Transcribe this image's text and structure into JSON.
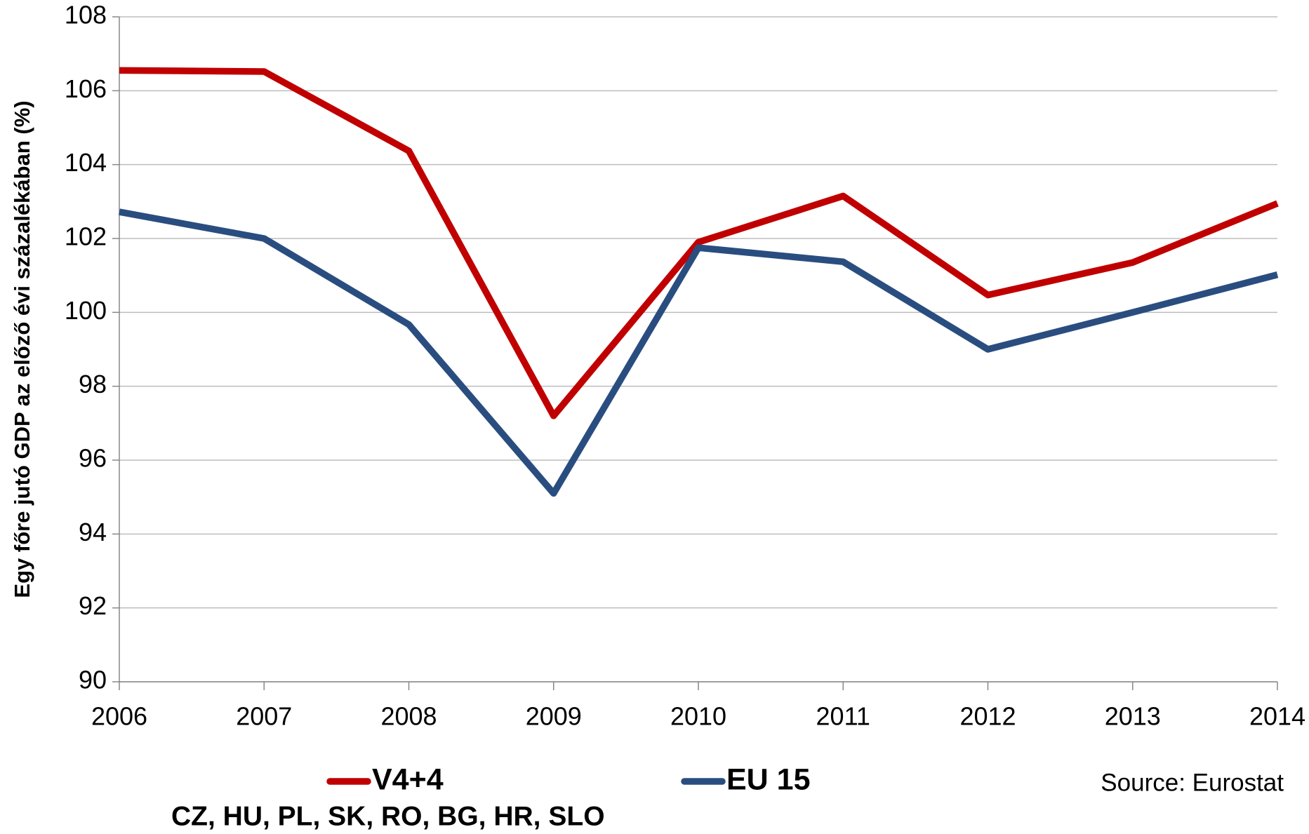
{
  "chart_data": {
    "type": "line",
    "y_label": "Egy főre jutó GDP az előző évi százalékában (%)",
    "x": [
      2006,
      2007,
      2008,
      2009,
      2010,
      2011,
      2012,
      2013,
      2014
    ],
    "xlim": [
      2006,
      2014
    ],
    "xticks": [
      2006,
      2007,
      2008,
      2009,
      2010,
      2011,
      2012,
      2013,
      2014
    ],
    "ylim": [
      90,
      108
    ],
    "yticks": [
      90,
      92,
      94,
      96,
      98,
      100,
      102,
      104,
      106,
      108
    ],
    "grid": true,
    "series": [
      {
        "name": "V4+4",
        "color": "#c00000",
        "values": [
          106.55,
          106.52,
          104.37,
          97.2,
          101.9,
          103.15,
          100.47,
          101.35,
          102.95
        ]
      },
      {
        "name": "EU 15",
        "color": "#2a4d80",
        "values": [
          102.72,
          102.0,
          99.67,
          95.1,
          101.75,
          101.37,
          99.0,
          100.0,
          101.02
        ]
      }
    ],
    "annotations": [
      "CZ, HU, PL, SK, RO, BG, HR, SLO",
      "Source: Eurostat"
    ]
  }
}
